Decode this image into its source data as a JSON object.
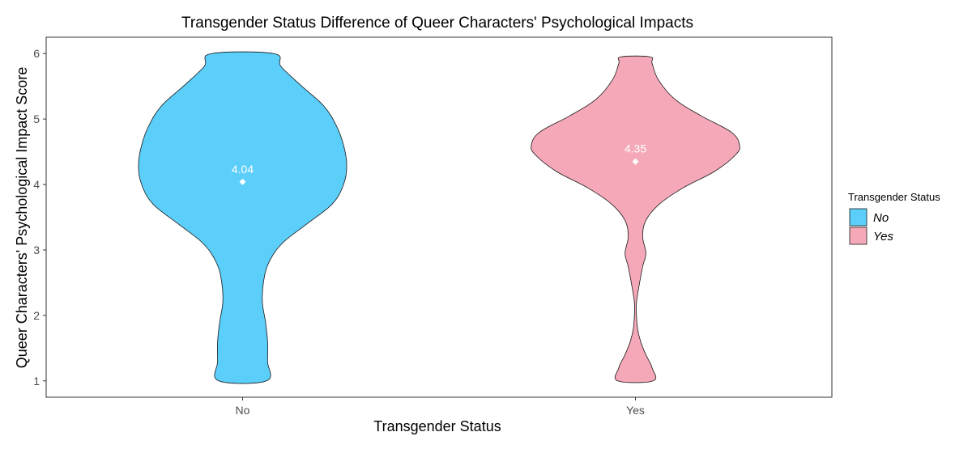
{
  "chart_data": {
    "type": "violin",
    "title": "Transgender Status Difference of Queer Characters' Psychological Impacts",
    "xlabel": "Transgender Status",
    "ylabel": "Queer Characters' Psychological Impact Score",
    "categories": [
      "No",
      "Yes"
    ],
    "ylim": [
      0.75,
      6.25
    ],
    "yticks": [
      1,
      2,
      3,
      4,
      5,
      6
    ],
    "grid": false,
    "legend": {
      "title": "Transgender Status",
      "placement": "right",
      "entries": [
        "No",
        "Yes"
      ]
    },
    "series": [
      {
        "name": "No",
        "color": "#5BCEFA",
        "mean": 4.04,
        "mean_label": "4.04",
        "range": [
          1,
          6
        ],
        "density_profile": [
          {
            "y": 1.0,
            "width": 0.23
          },
          {
            "y": 1.3,
            "width": 0.24
          },
          {
            "y": 1.6,
            "width": 0.24
          },
          {
            "y": 1.9,
            "width": 0.22
          },
          {
            "y": 2.2,
            "width": 0.19
          },
          {
            "y": 2.5,
            "width": 0.2
          },
          {
            "y": 2.8,
            "width": 0.25
          },
          {
            "y": 3.1,
            "width": 0.38
          },
          {
            "y": 3.4,
            "width": 0.62
          },
          {
            "y": 3.7,
            "width": 0.86
          },
          {
            "y": 4.0,
            "width": 0.97
          },
          {
            "y": 4.3,
            "width": 1.0
          },
          {
            "y": 4.6,
            "width": 0.97
          },
          {
            "y": 4.9,
            "width": 0.9
          },
          {
            "y": 5.2,
            "width": 0.78
          },
          {
            "y": 5.5,
            "width": 0.57
          },
          {
            "y": 5.8,
            "width": 0.37
          },
          {
            "y": 6.0,
            "width": 0.3
          }
        ]
      },
      {
        "name": "Yes",
        "color": "#F5A9B8",
        "mean": 4.35,
        "mean_label": "4.35",
        "range": [
          1,
          5.95
        ],
        "density_profile": [
          {
            "y": 1.0,
            "width": 0.17
          },
          {
            "y": 1.2,
            "width": 0.16
          },
          {
            "y": 1.4,
            "width": 0.1
          },
          {
            "y": 1.6,
            "width": 0.05
          },
          {
            "y": 1.8,
            "width": 0.02
          },
          {
            "y": 2.0,
            "width": 0.01
          },
          {
            "y": 2.2,
            "width": 0.01
          },
          {
            "y": 2.5,
            "width": 0.04
          },
          {
            "y": 2.75,
            "width": 0.07
          },
          {
            "y": 2.95,
            "width": 0.1
          },
          {
            "y": 3.2,
            "width": 0.07
          },
          {
            "y": 3.45,
            "width": 0.1
          },
          {
            "y": 3.7,
            "width": 0.23
          },
          {
            "y": 3.95,
            "width": 0.46
          },
          {
            "y": 4.2,
            "width": 0.76
          },
          {
            "y": 4.45,
            "width": 0.96
          },
          {
            "y": 4.6,
            "width": 1.0
          },
          {
            "y": 4.8,
            "width": 0.92
          },
          {
            "y": 5.05,
            "width": 0.63
          },
          {
            "y": 5.3,
            "width": 0.38
          },
          {
            "y": 5.6,
            "width": 0.22
          },
          {
            "y": 5.85,
            "width": 0.16
          },
          {
            "y": 5.95,
            "width": 0.14
          }
        ]
      }
    ]
  }
}
